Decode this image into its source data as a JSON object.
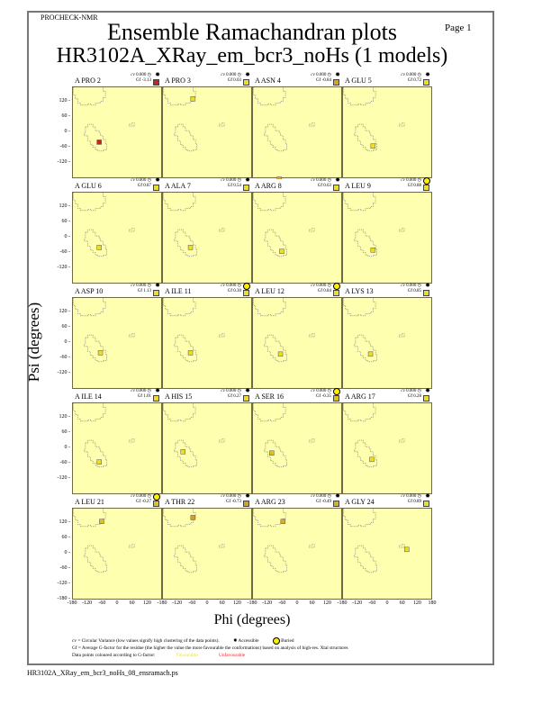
{
  "header": {
    "program": "PROCHECK-NMR",
    "page": "Page  1",
    "title": "Ensemble Ramachandran plots",
    "subtitle": "HR3102A_XRay_em_bcr3_noHs (1 models)"
  },
  "axes": {
    "ylabel": "Psi (degrees)",
    "xlabel": "Phi (degrees)",
    "yticks": [
      "120",
      "60",
      "0",
      "-60",
      "-120"
    ],
    "yticks_bottom": [
      "120",
      "60",
      "0",
      "-60",
      "-120",
      "-180"
    ],
    "xticks": [
      "-180",
      "-120",
      "-60",
      "0",
      "60",
      "120",
      "180"
    ]
  },
  "legend": {
    "line1": "cv = Circular Variance (low values signify high clustering of the data points).",
    "accessible": "Accessible",
    "buried": "Buried",
    "line2": "Gf = Average G-factor for the residue (the higher the value the more favourable the conformations) based on analysis of high-res. Xtal structures",
    "line3": "Data points coloured according to G-factor:",
    "favourable": "Favourable",
    "unfavourable": "Unfavourable",
    "favourable_color": "#ffff00",
    "unfavourable_color": "#ff0000"
  },
  "footer": "HR3102A_XRay_em_bcr3_noHs_08_ensramach.ps",
  "chart_data": {
    "type": "scatter",
    "title": "Ensemble Ramachandran plots",
    "xlabel": "Phi (degrees)",
    "ylabel": "Psi (degrees)",
    "xlim": [
      -180,
      180
    ],
    "ylim": [
      -180,
      180
    ],
    "panels": [
      {
        "residue": "A PRO 2",
        "cv": "0.000",
        "gf": "-3.13",
        "access": "accessible",
        "color": "#cc2222",
        "phi": -75,
        "psi": -35
      },
      {
        "residue": "A PRO 3",
        "cv": "0.000",
        "gf": "0.03",
        "access": "accessible",
        "color": "#eedd22",
        "phi": -60,
        "psi": 135
      },
      {
        "residue": "A ASN 4",
        "cv": "0.000",
        "gf": "-0.84",
        "access": "accessible",
        "color": "#e0a020",
        "phi": -75,
        "psi": -180
      },
      {
        "residue": "A GLU 5",
        "cv": "0.000",
        "gf": "0.72",
        "access": "accessible",
        "color": "#eedd22",
        "phi": -60,
        "psi": -50
      },
      {
        "residue": "A GLU 6",
        "cv": "0.000",
        "gf": "0.87",
        "access": "accessible",
        "color": "#eedd22",
        "phi": -75,
        "psi": -35
      },
      {
        "residue": "A ALA 7",
        "cv": "0.000",
        "gf": "0.54",
        "access": "accessible",
        "color": "#eedd22",
        "phi": -70,
        "psi": -35
      },
      {
        "residue": "A ARG 8",
        "cv": "0.000",
        "gf": "0.63",
        "access": "accessible",
        "color": "#eedd22",
        "phi": -65,
        "psi": -50
      },
      {
        "residue": "A LEU 9",
        "cv": "0.000",
        "gf": "0.88",
        "access": "buried",
        "color": "#eedd22",
        "phi": -60,
        "psi": -45
      },
      {
        "residue": "A ASP 10",
        "cv": "0.000",
        "gf": "1.13",
        "access": "accessible",
        "color": "#eedd22",
        "phi": -70,
        "psi": -35
      },
      {
        "residue": "A ILE 11",
        "cv": "0.000",
        "gf": "0.30",
        "access": "buried",
        "color": "#eedd22",
        "phi": -70,
        "psi": -35
      },
      {
        "residue": "A LEU 12",
        "cv": "0.000",
        "gf": "0.84",
        "access": "buried",
        "color": "#eedd22",
        "phi": -70,
        "psi": -40
      },
      {
        "residue": "A LYS 13",
        "cv": "0.000",
        "gf": "0.85",
        "access": "accessible",
        "color": "#eedd22",
        "phi": -70,
        "psi": -40
      },
      {
        "residue": "A ILE 14",
        "cv": "0.000",
        "gf": "1.01",
        "access": "accessible",
        "color": "#eedd22",
        "phi": -75,
        "psi": -50
      },
      {
        "residue": "A HIS 15",
        "cv": "0.000",
        "gf": "0.27",
        "access": "accessible",
        "color": "#eedd22",
        "phi": -100,
        "psi": -10
      },
      {
        "residue": "A SER 16",
        "cv": "0.000",
        "gf": "-0.35",
        "access": "buried",
        "color": "#e0c020",
        "phi": -105,
        "psi": -15
      },
      {
        "residue": "A ARG 17",
        "cv": "0.000",
        "gf": "0.28",
        "access": "accessible",
        "color": "#eedd22",
        "phi": -65,
        "psi": -40
      },
      {
        "residue": "A LEU 21",
        "cv": "0.000",
        "gf": "-0.27",
        "access": "buried",
        "color": "#e0c020",
        "phi": -65,
        "psi": 130
      },
      {
        "residue": "A THR 22",
        "cv": "0.000",
        "gf": "-0.73",
        "access": "accessible",
        "color": "#d9a020",
        "phi": -60,
        "psi": 145
      },
      {
        "residue": "A ARG 23",
        "cv": "0.000",
        "gf": "-0.49",
        "access": "accessible",
        "color": "#d9b020",
        "phi": -60,
        "psi": 130
      },
      {
        "residue": "A GLY 24",
        "cv": "0.000",
        "gf": "0.89",
        "access": "accessible",
        "color": "#eedd22",
        "phi": 75,
        "psi": 20
      }
    ]
  }
}
